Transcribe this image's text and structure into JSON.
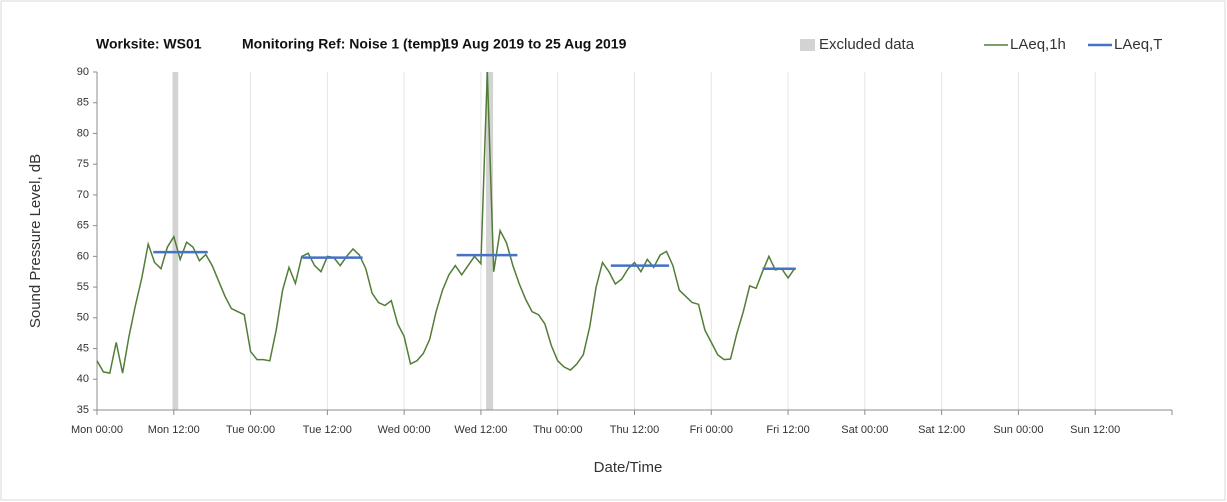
{
  "chart_data": {
    "type": "line",
    "title_parts": [
      "Worksite: WS01",
      "Monitoring Ref: Noise 1 (temp)",
      "19 Aug 2019 to 25 Aug 2019"
    ],
    "xlabel": "Date/Time",
    "ylabel": "Sound Pressure Level, dB",
    "x": [
      0,
      1,
      2,
      3,
      4,
      5,
      6,
      7,
      8,
      9,
      10,
      11,
      12,
      13,
      14,
      15,
      16,
      17,
      18,
      19,
      20,
      21,
      22,
      23,
      24,
      25,
      26,
      27,
      28,
      29,
      30,
      31,
      32,
      33,
      34,
      35,
      36,
      37,
      38,
      39,
      40,
      41,
      42,
      43,
      44,
      45,
      46,
      47,
      48,
      49,
      50,
      51,
      52,
      53,
      54,
      55,
      56,
      57,
      58,
      59,
      60,
      61,
      62,
      63,
      64,
      65,
      66,
      67,
      68,
      69,
      70,
      71,
      72,
      73,
      74,
      75,
      76,
      77,
      78,
      79,
      80,
      81,
      82,
      83,
      84,
      85,
      86,
      87,
      88,
      89,
      90,
      91,
      92,
      93,
      94,
      95,
      96,
      97,
      98,
      99,
      100,
      101,
      102,
      103,
      104,
      105,
      106,
      107,
      108,
      109
    ],
    "series": [
      {
        "name": "LAeq,1h",
        "color": "#527d36",
        "values": [
          43,
          41.2,
          41,
          46,
          41,
          47,
          52,
          56.5,
          62,
          59,
          58,
          61.5,
          63.2,
          59.5,
          62.3,
          61.5,
          59.3,
          60.3,
          58.5,
          56,
          53.5,
          51.5,
          51,
          50.5,
          44.5,
          43.2,
          43.2,
          43,
          48,
          54.5,
          58.2,
          55.6,
          60,
          60.5,
          58.5,
          57.5,
          60,
          59.8,
          58.5,
          60,
          61.2,
          60.2,
          58,
          54,
          52.5,
          52,
          52.8,
          49,
          47,
          42.5,
          43,
          44.2,
          46.5,
          51,
          54.5,
          57,
          58.5,
          57,
          58.5,
          60,
          58.8,
          90,
          57.5,
          64.2,
          62.2,
          58.5,
          55.5,
          53,
          51,
          50.5,
          49,
          45.5,
          43,
          42,
          41.5,
          42.5,
          44,
          48.5,
          55,
          59,
          57.5,
          55.5,
          56.3,
          58,
          59,
          57.5,
          59.5,
          58.2,
          60.2,
          60.8,
          58.5,
          54.5,
          53.5,
          52.5,
          52.2,
          48,
          46,
          44,
          43.2,
          43.3,
          47.5,
          51,
          55.2,
          54.8,
          57.5,
          60,
          57.8,
          58,
          56.5,
          58
        ]
      },
      {
        "name": "LAeq,T",
        "color": "#4472c4",
        "x": [
          8.8,
          17.3,
          24,
          32.1,
          41.5,
          48,
          56.2,
          65.7,
          72,
          80.3,
          89.4,
          96,
          104,
          109.2
        ],
        "values": [
          60.7,
          60.7,
          null,
          59.8,
          59.8,
          null,
          60.2,
          60.2,
          null,
          58.5,
          58.5,
          null,
          58,
          58
        ]
      }
    ],
    "excluded": {
      "name": "Excluded data",
      "color": "#d3d3d3",
      "ranges": [
        [
          11.8,
          12.7
        ],
        [
          60.8,
          61.9
        ]
      ]
    },
    "xlim": [
      0,
      168
    ],
    "xticks": [
      {
        "value": 0,
        "label": "Mon 00:00"
      },
      {
        "value": 12,
        "label": "Mon 12:00"
      },
      {
        "value": 24,
        "label": "Tue 00:00"
      },
      {
        "value": 36,
        "label": "Tue 12:00"
      },
      {
        "value": 48,
        "label": "Wed 00:00"
      },
      {
        "value": 60,
        "label": "Wed 12:00"
      },
      {
        "value": 72,
        "label": "Thu 00:00"
      },
      {
        "value": 84,
        "label": "Thu 12:00"
      },
      {
        "value": 96,
        "label": "Fri 00:00"
      },
      {
        "value": 108,
        "label": "Fri 12:00"
      },
      {
        "value": 120,
        "label": "Sat 00:00"
      },
      {
        "value": 132,
        "label": "Sat 12:00"
      },
      {
        "value": 144,
        "label": "Sun 00:00"
      },
      {
        "value": 156,
        "label": "Sun 12:00"
      }
    ],
    "ylim": [
      35,
      90
    ],
    "yticks": [
      35,
      40,
      45,
      50,
      55,
      60,
      65,
      70,
      75,
      80,
      85,
      90
    ],
    "grid": "x"
  }
}
